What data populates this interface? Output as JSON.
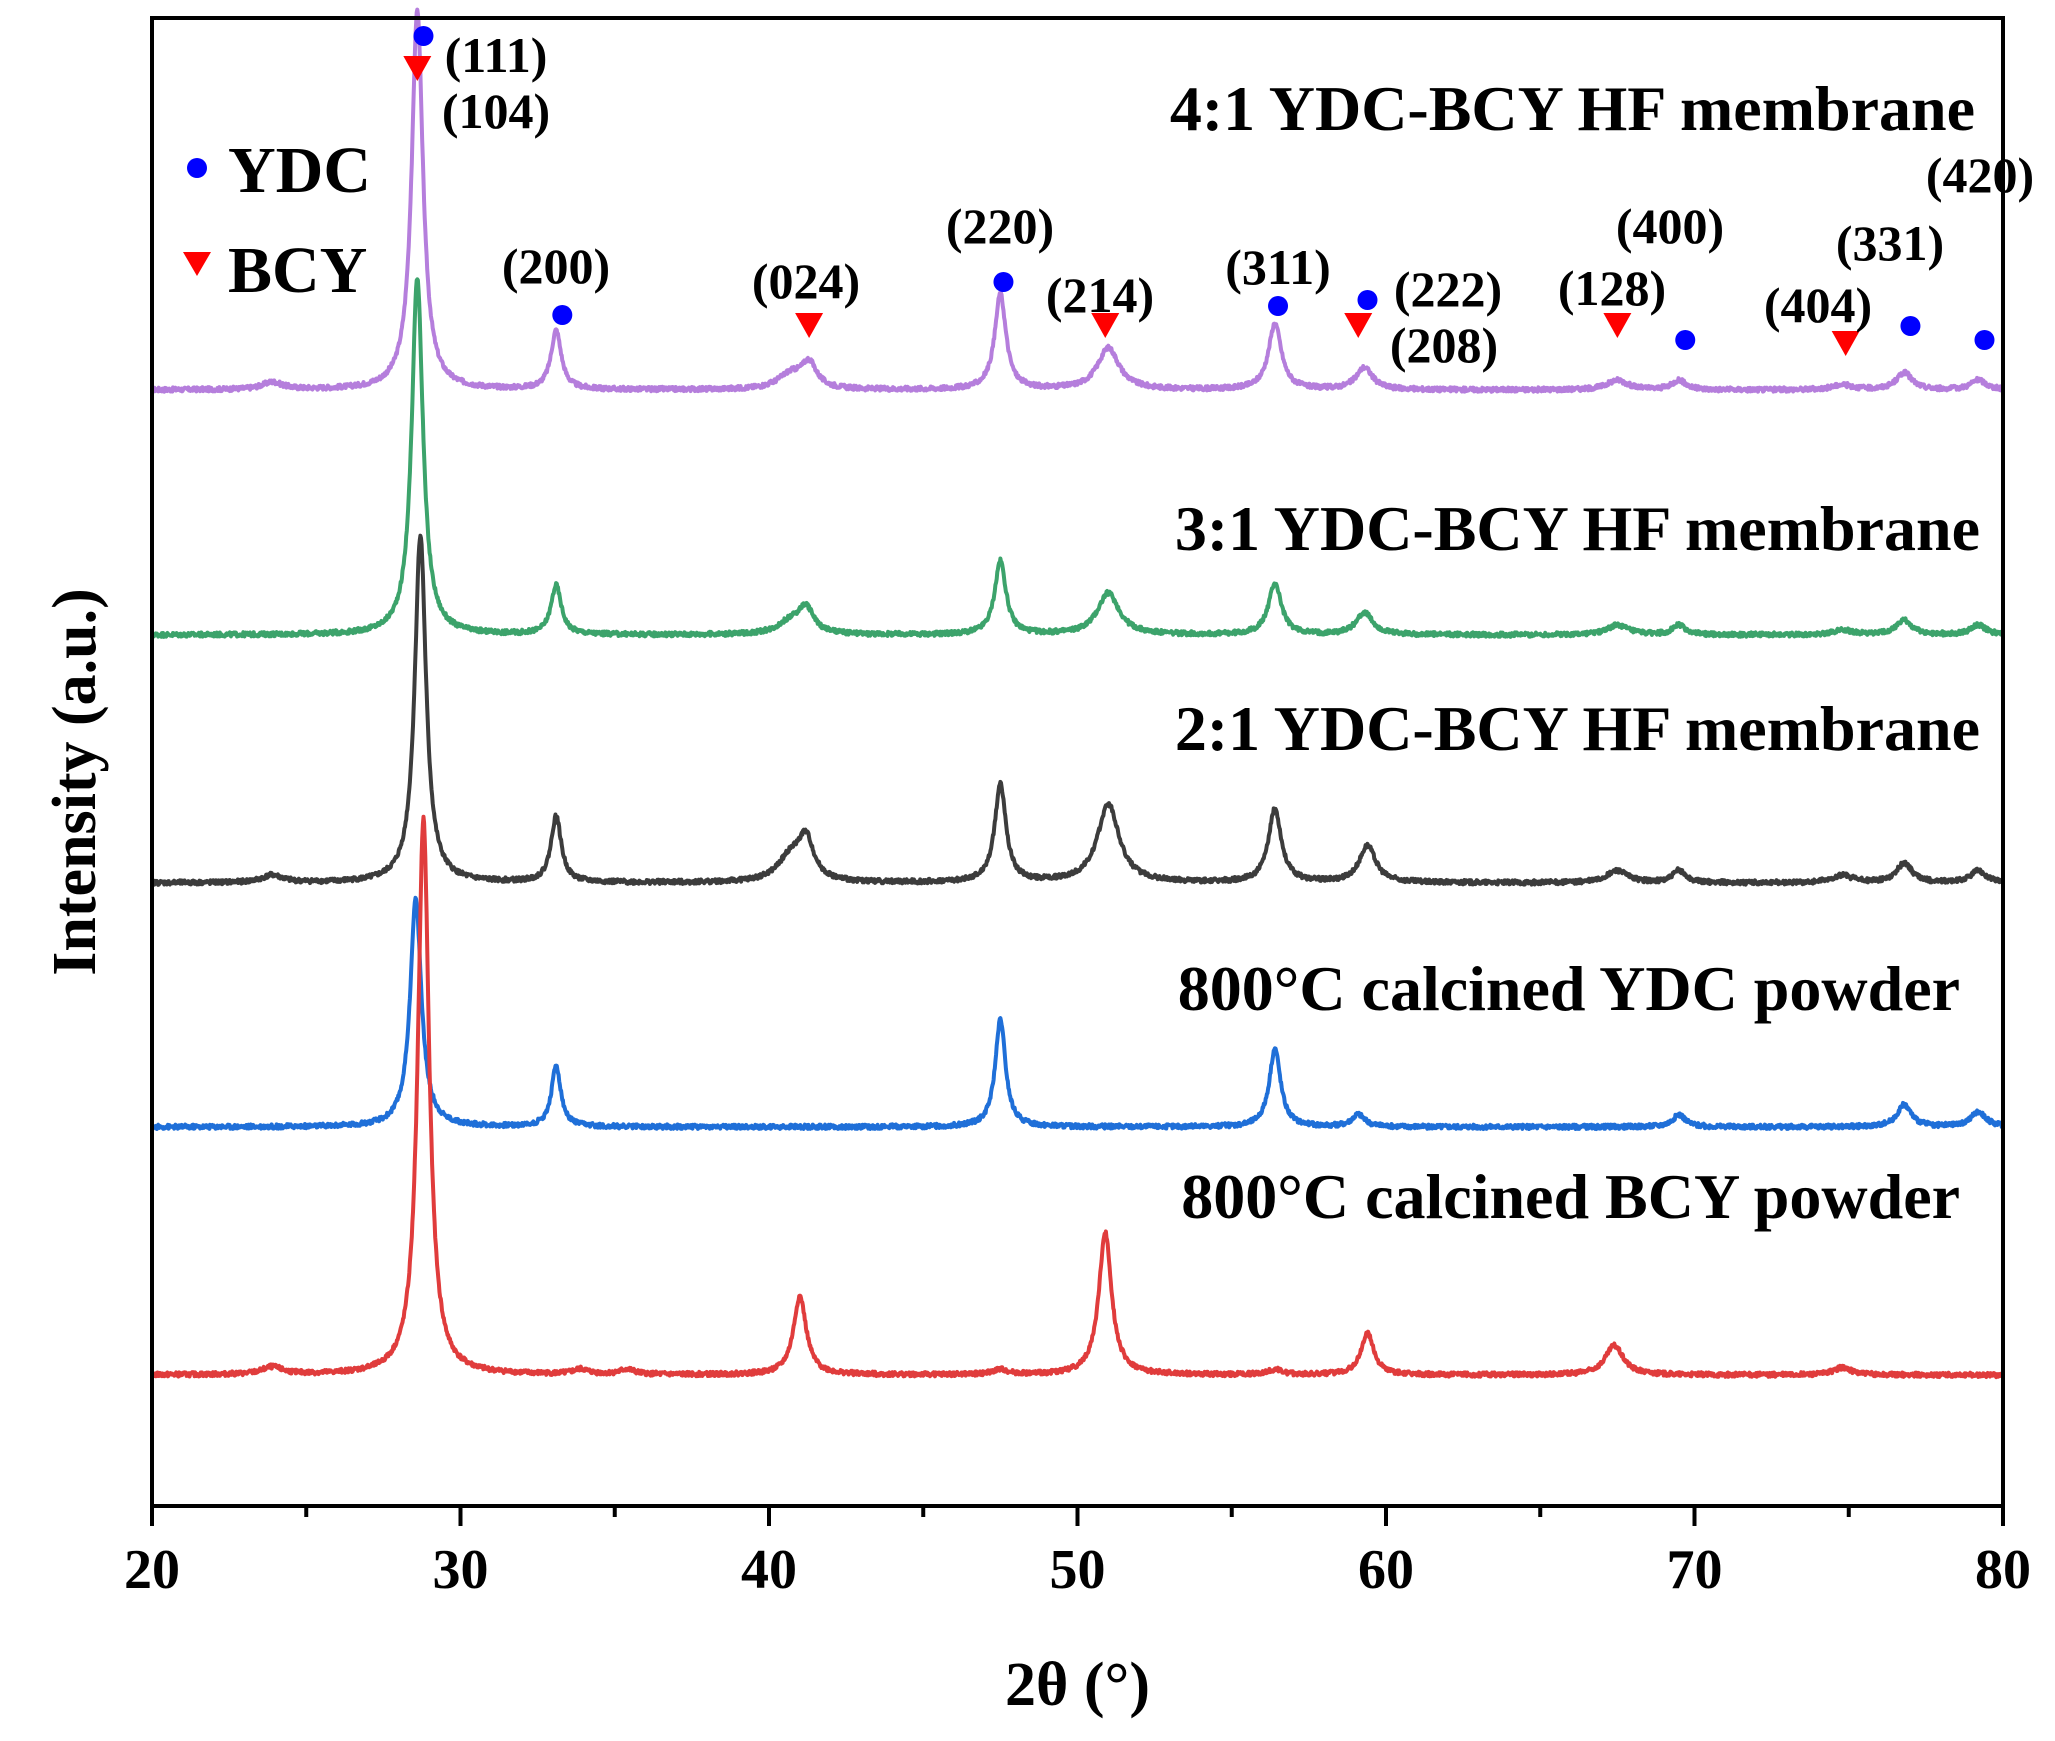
{
  "chart_data": {
    "type": "line",
    "title": "",
    "xlabel": "2θ (°)",
    "ylabel": "Intensity (a.u.)",
    "xlim": [
      20,
      80
    ],
    "xticks": [
      20,
      30,
      40,
      50,
      60,
      70,
      80
    ],
    "xtick_labels": [
      "20",
      "30",
      "40",
      "50",
      "60",
      "70",
      "80"
    ],
    "yticks_shown": false,
    "legend": {
      "placement": "top-left",
      "entries": [
        {
          "name": "YDC",
          "marker": "circle",
          "color": "#0000FF"
        },
        {
          "name": "BCY",
          "marker": "triangle-down",
          "color": "#FF0000"
        }
      ]
    },
    "series": [
      {
        "name": "4:1 YDC-BCY HF membrane",
        "color": "#B57EDC",
        "baseline": 4.0,
        "peaks": [
          [
            23.9,
            0.03
          ],
          [
            28.6,
            1.55
          ],
          [
            33.1,
            0.24
          ],
          [
            40.7,
            0.06
          ],
          [
            41.3,
            0.1
          ],
          [
            47.5,
            0.39
          ],
          [
            51.0,
            0.17
          ],
          [
            56.4,
            0.27
          ],
          [
            59.3,
            0.09
          ],
          [
            67.5,
            0.04
          ],
          [
            69.5,
            0.04
          ],
          [
            74.8,
            0.02
          ],
          [
            76.8,
            0.07
          ],
          [
            79.2,
            0.04
          ]
        ],
        "widths": [
          0.4,
          0.22,
          0.2,
          0.5,
          0.3,
          0.22,
          0.42,
          0.25,
          0.32,
          0.4,
          0.25,
          0.4,
          0.3,
          0.3
        ]
      },
      {
        "name": "3:1 YDC-BCY HF membrane",
        "color": "#3CA36B",
        "baseline": 3.0,
        "peaks": [
          [
            28.6,
            1.46
          ],
          [
            33.1,
            0.2
          ],
          [
            40.7,
            0.05
          ],
          [
            41.2,
            0.1
          ],
          [
            47.5,
            0.3
          ],
          [
            51.0,
            0.17
          ],
          [
            56.4,
            0.21
          ],
          [
            59.3,
            0.09
          ],
          [
            67.5,
            0.04
          ],
          [
            69.5,
            0.04
          ],
          [
            74.8,
            0.02
          ],
          [
            76.8,
            0.06
          ],
          [
            79.2,
            0.04
          ]
        ],
        "widths": [
          0.22,
          0.2,
          0.5,
          0.3,
          0.22,
          0.42,
          0.25,
          0.32,
          0.4,
          0.25,
          0.4,
          0.3,
          0.3
        ]
      },
      {
        "name": "2:1 YDC-BCY HF membrane",
        "color": "#3C3C3C",
        "baseline": 2.0,
        "peaks": [
          [
            23.9,
            0.03
          ],
          [
            28.7,
            1.42
          ],
          [
            33.1,
            0.27
          ],
          [
            40.7,
            0.1
          ],
          [
            41.2,
            0.16
          ],
          [
            47.5,
            0.4
          ],
          [
            51.0,
            0.32
          ],
          [
            56.4,
            0.3
          ],
          [
            59.4,
            0.15
          ],
          [
            67.5,
            0.05
          ],
          [
            69.5,
            0.05
          ],
          [
            74.8,
            0.03
          ],
          [
            76.8,
            0.08
          ],
          [
            79.2,
            0.05
          ]
        ],
        "widths": [
          0.4,
          0.22,
          0.2,
          0.5,
          0.3,
          0.22,
          0.42,
          0.25,
          0.32,
          0.4,
          0.25,
          0.4,
          0.3,
          0.3
        ]
      },
      {
        "name": "800°C calcined YDC powder",
        "color": "#1F6FD8",
        "baseline": 1.0,
        "peaks": [
          [
            28.55,
            0.93
          ],
          [
            33.1,
            0.25
          ],
          [
            47.5,
            0.44
          ],
          [
            56.4,
            0.32
          ],
          [
            59.1,
            0.05
          ],
          [
            69.5,
            0.05
          ],
          [
            76.8,
            0.09
          ],
          [
            79.2,
            0.06
          ]
        ],
        "widths": [
          0.22,
          0.18,
          0.2,
          0.22,
          0.25,
          0.25,
          0.28,
          0.3
        ]
      },
      {
        "name": "800°C calcined BCY powder",
        "color": "#E03C3C",
        "baseline": 0.0,
        "peaks": [
          [
            23.9,
            0.03
          ],
          [
            28.8,
            2.27
          ],
          [
            33.9,
            0.02
          ],
          [
            35.4,
            0.02
          ],
          [
            41.0,
            0.32
          ],
          [
            47.5,
            0.02
          ],
          [
            50.9,
            0.58
          ],
          [
            56.4,
            0.02
          ],
          [
            59.4,
            0.17
          ],
          [
            67.4,
            0.12
          ],
          [
            74.8,
            0.03
          ]
        ],
        "widths": [
          0.4,
          0.22,
          0.3,
          0.3,
          0.25,
          0.3,
          0.25,
          0.3,
          0.25,
          0.35,
          0.35
        ]
      }
    ],
    "annotations": {
      "ydc_markers": [
        {
          "x": 28.8,
          "label": "(111)"
        },
        {
          "x": 33.3,
          "label": "(200)"
        },
        {
          "x": 47.6,
          "label": "(220)"
        },
        {
          "x": 56.5,
          "label": "(311)"
        },
        {
          "x": 59.4,
          "label": "(222)"
        },
        {
          "x": 69.7,
          "label": "(400)"
        },
        {
          "x": 77.0,
          "label": "(331)"
        },
        {
          "x": 79.4,
          "label": "(420)"
        }
      ],
      "bcy_markers": [
        {
          "x": 28.6,
          "label": "(104)"
        },
        {
          "x": 41.3,
          "label": "(024)"
        },
        {
          "x": 50.9,
          "label": "(214)"
        },
        {
          "x": 59.1,
          "label": "(208)"
        },
        {
          "x": 67.5,
          "label": "(128)"
        },
        {
          "x": 74.9,
          "label": "(404)"
        }
      ]
    }
  }
}
